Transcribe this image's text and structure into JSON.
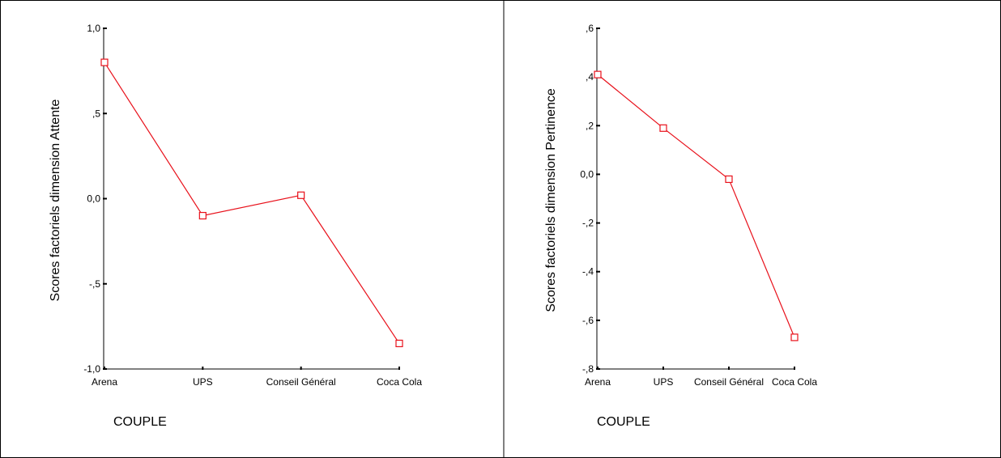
{
  "chart_data": [
    {
      "type": "line",
      "categories": [
        "Arena",
        "UPS",
        "Conseil Général",
        "Coca Cola"
      ],
      "series": [
        {
          "values": [
            0.8,
            -0.1,
            0.02,
            -0.85
          ],
          "color": "#e8101a"
        }
      ],
      "xlabel": "COUPLE",
      "ylabel": "Scores factoriels dimension Attente",
      "ylim": [
        -1.0,
        1.0
      ],
      "yticks": [
        1.0,
        0.5,
        0.0,
        -0.5,
        -1.0
      ],
      "ytick_labels": [
        "1,0",
        ",5",
        "0,0",
        "-,5",
        "-1,0"
      ],
      "grid": false,
      "marker": "open-square"
    },
    {
      "type": "line",
      "categories": [
        "Arena",
        "UPS",
        "Conseil Général",
        "Coca Cola"
      ],
      "series": [
        {
          "values": [
            0.41,
            0.19,
            -0.02,
            -0.67
          ],
          "color": "#e8101a"
        }
      ],
      "xlabel": "COUPLE",
      "ylabel": "Scores factoriels dimension Pertinence",
      "ylim": [
        -0.8,
        0.6
      ],
      "yticks": [
        0.6,
        0.4,
        0.2,
        0.0,
        -0.2,
        -0.4,
        -0.6,
        -0.8
      ],
      "ytick_labels": [
        ",6",
        ",4",
        ",2",
        "0,0",
        "-,2",
        "-,4",
        "-,6",
        "-,8"
      ],
      "grid": false,
      "marker": "open-square"
    }
  ]
}
